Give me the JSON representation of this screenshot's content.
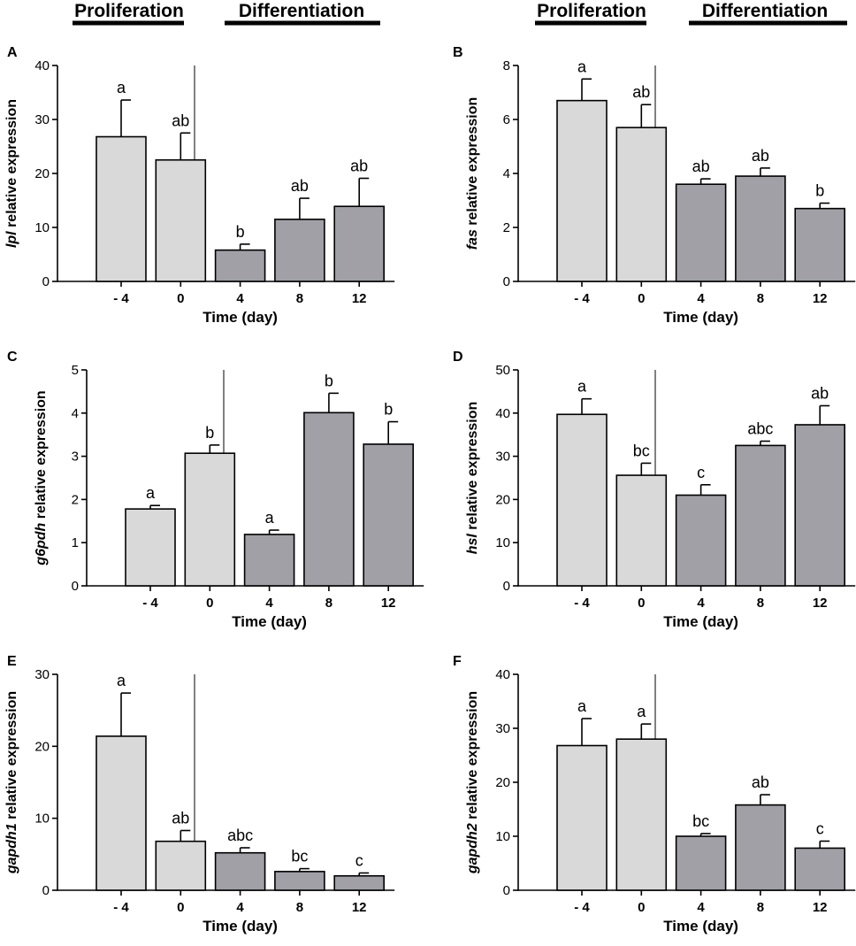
{
  "header": {
    "left": {
      "proliferation": "Proliferation",
      "differentiation": "Differentiation"
    },
    "right": {
      "proliferation": "Proliferation",
      "differentiation": "Differentiation"
    }
  },
  "colors": {
    "proliferation_bar": "#d9d9d9",
    "differentiation_bar": "#a0a0a6",
    "axis": "#000000"
  },
  "chart_data": [
    {
      "panel": "A",
      "type": "bar",
      "gene": "lpl",
      "ylabel_suffix": " relative expression",
      "xlabel": "Time (day)",
      "categories": [
        "- 4",
        "0",
        "4",
        "8",
        "12"
      ],
      "phases": [
        "proliferation",
        "proliferation",
        "differentiation",
        "differentiation",
        "differentiation"
      ],
      "values": [
        26.8,
        22.5,
        5.8,
        11.5,
        13.9
      ],
      "errors": [
        6.8,
        5.0,
        1.1,
        3.9,
        5.2
      ],
      "letters": [
        "a",
        "ab",
        "b",
        "ab",
        "ab"
      ],
      "ylim": [
        0,
        40
      ],
      "yticks": [
        0,
        10,
        20,
        30,
        40
      ]
    },
    {
      "panel": "B",
      "type": "bar",
      "gene": "fas",
      "ylabel_suffix": " relative expression",
      "xlabel": "Time (day)",
      "categories": [
        "- 4",
        "0",
        "4",
        "8",
        "12"
      ],
      "phases": [
        "proliferation",
        "proliferation",
        "differentiation",
        "differentiation",
        "differentiation"
      ],
      "values": [
        6.7,
        5.7,
        3.6,
        3.9,
        2.7
      ],
      "errors": [
        0.8,
        0.85,
        0.2,
        0.3,
        0.2
      ],
      "letters": [
        "a",
        "ab",
        "ab",
        "ab",
        "b"
      ],
      "ylim": [
        0,
        8
      ],
      "yticks": [
        0,
        2,
        4,
        6,
        8
      ]
    },
    {
      "panel": "C",
      "type": "bar",
      "gene": "g6pdh",
      "ylabel_suffix": " relative expression",
      "xlabel": "Time (day)",
      "categories": [
        "- 4",
        "0",
        "4",
        "8",
        "12"
      ],
      "phases": [
        "proliferation",
        "proliferation",
        "differentiation",
        "differentiation",
        "differentiation"
      ],
      "values": [
        1.78,
        3.07,
        1.19,
        4.01,
        3.28
      ],
      "errors": [
        0.08,
        0.19,
        0.1,
        0.45,
        0.52
      ],
      "letters": [
        "a",
        "b",
        "a",
        "b",
        "b"
      ],
      "ylim": [
        0,
        5
      ],
      "yticks": [
        0,
        1,
        2,
        3,
        4,
        5
      ]
    },
    {
      "panel": "D",
      "type": "bar",
      "gene": "hsl",
      "ylabel_suffix": " relative expression",
      "xlabel": "Time (day)",
      "categories": [
        "- 4",
        "0",
        "4",
        "8",
        "12"
      ],
      "phases": [
        "proliferation",
        "proliferation",
        "differentiation",
        "differentiation",
        "differentiation"
      ],
      "values": [
        39.7,
        25.6,
        21.0,
        32.5,
        37.3
      ],
      "errors": [
        3.6,
        2.8,
        2.4,
        1.0,
        4.4
      ],
      "letters": [
        "a",
        "bc",
        "c",
        "abc",
        "ab"
      ],
      "ylim": [
        0,
        50
      ],
      "yticks": [
        0,
        10,
        20,
        30,
        40,
        50
      ]
    },
    {
      "panel": "E",
      "type": "bar",
      "gene": "gapdh1",
      "ylabel_suffix": " relative expression",
      "xlabel": "Time (day)",
      "categories": [
        "- 4",
        "0",
        "4",
        "8",
        "12"
      ],
      "phases": [
        "proliferation",
        "proliferation",
        "differentiation",
        "differentiation",
        "differentiation"
      ],
      "values": [
        21.4,
        6.8,
        5.2,
        2.6,
        2.0
      ],
      "errors": [
        6.0,
        1.5,
        0.7,
        0.4,
        0.4
      ],
      "letters": [
        "a",
        "ab",
        "abc",
        "bc",
        "c"
      ],
      "ylim": [
        0,
        30
      ],
      "yticks": [
        0,
        10,
        20,
        30
      ]
    },
    {
      "panel": "F",
      "type": "bar",
      "gene": "gapdh2",
      "ylabel_suffix": " relative expression",
      "xlabel": "Time (day)",
      "categories": [
        "- 4",
        "0",
        "4",
        "8",
        "12"
      ],
      "phases": [
        "proliferation",
        "proliferation",
        "differentiation",
        "differentiation",
        "differentiation"
      ],
      "values": [
        26.8,
        28.0,
        10.0,
        15.8,
        7.8
      ],
      "errors": [
        5.0,
        2.8,
        0.5,
        1.9,
        1.3
      ],
      "letters": [
        "a",
        "a",
        "bc",
        "ab",
        "c"
      ],
      "ylim": [
        0,
        40
      ],
      "yticks": [
        0,
        10,
        20,
        30,
        40
      ]
    }
  ]
}
